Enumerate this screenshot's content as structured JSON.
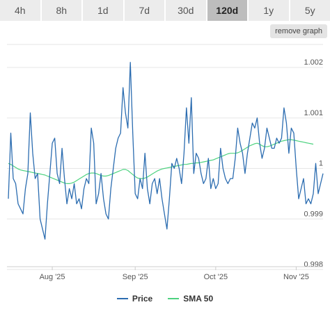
{
  "range_buttons": [
    "4h",
    "8h",
    "1d",
    "7d",
    "30d",
    "120d",
    "1y",
    "5y"
  ],
  "active_range": "120d",
  "remove_graph_label": "remove graph",
  "chart_data": {
    "type": "line",
    "x_axis": {
      "ticks": [
        "Aug '25",
        "Sep '25",
        "Oct '25",
        "Nov '25"
      ],
      "tick_index": [
        18,
        52,
        85,
        118
      ]
    },
    "y_axis": {
      "range": [
        0.998,
        1.0024
      ],
      "ticks": [
        0.998,
        0.999,
        1,
        1.001,
        1.002
      ],
      "tick_labels": [
        "0.998",
        "0.999",
        "1",
        "1.001",
        "1.002"
      ],
      "grid": true
    },
    "series": [
      {
        "name": "Price",
        "color": "#2b6cb0",
        "values": [
          0.9994,
          1.0007,
          0.9998,
          0.9997,
          0.9993,
          0.9992,
          0.9991,
          0.9996,
          0.9999,
          1.0011,
          1.0003,
          0.9998,
          0.9999,
          0.999,
          0.9988,
          0.9986,
          0.9993,
          0.9999,
          1.0005,
          1.0006,
          0.9999,
          0.9997,
          1.0004,
          0.9998,
          0.9993,
          0.9996,
          0.9994,
          0.9997,
          0.9993,
          0.9994,
          0.9992,
          0.9996,
          0.9998,
          0.9997,
          1.0008,
          1.0005,
          0.9993,
          0.9995,
          0.9999,
          0.9994,
          0.9991,
          0.999,
          0.9996,
          1.0,
          1.0004,
          1.0006,
          1.0007,
          1.0016,
          1.0011,
          1.0008,
          1.0021,
          1.0007,
          0.9995,
          0.9994,
          0.9998,
          0.9996,
          1.0003,
          0.9996,
          0.9993,
          0.9997,
          0.9998,
          0.9995,
          0.9998,
          0.9994,
          0.9991,
          0.9988,
          0.9994,
          1.0001,
          1.0,
          1.0002,
          1.0,
          0.9997,
          1.0003,
          1.0012,
          1.0005,
          1.0014,
          0.9999,
          1.0003,
          1.0002,
          0.9999,
          0.9997,
          0.9998,
          1.0002,
          0.9996,
          0.9998,
          0.9996,
          0.9997,
          1.0004,
          1.0,
          0.9998,
          0.9997,
          0.9998,
          0.9998,
          1.0002,
          1.0008,
          1.0005,
          1.0003,
          0.9999,
          1.0003,
          1.0006,
          1.0009,
          1.0008,
          1.001,
          1.0005,
          1.0002,
          1.0004,
          1.0008,
          1.0006,
          1.0004,
          1.0004,
          1.0006,
          1.0005,
          1.0006,
          1.0012,
          1.0009,
          1.0003,
          1.0008,
          1.0007,
          1.0,
          0.9994,
          0.9996,
          0.9998,
          0.9993,
          0.9994,
          0.9993,
          0.9995,
          1.0001,
          0.9995,
          0.9997,
          0.9999
        ]
      },
      {
        "name": "SMA 50",
        "color": "#4cd27f",
        "values": [
          1.0001,
          1.00008,
          1.00005,
          1.00002,
          0.99999,
          0.99997,
          0.99996,
          0.99995,
          0.99994,
          0.99993,
          0.99992,
          0.99991,
          0.9999,
          0.99989,
          0.99988,
          0.99987,
          0.99985,
          0.99983,
          0.99981,
          0.99979,
          0.99977,
          0.99975,
          0.99973,
          0.99971,
          0.9997,
          0.9997,
          0.99971,
          0.99973,
          0.99976,
          0.99979,
          0.99982,
          0.99985,
          0.99988,
          0.9999,
          0.99991,
          0.99991,
          0.9999,
          0.99988,
          0.99986,
          0.99985,
          0.99985,
          0.99986,
          0.99988,
          0.9999,
          0.99992,
          0.99994,
          0.99996,
          0.99998,
          0.99998,
          0.99996,
          0.99992,
          0.99988,
          0.99984,
          0.99981,
          0.9998,
          0.9998,
          0.99981,
          0.99983,
          0.99986,
          0.99989,
          0.99992,
          0.99995,
          0.99997,
          0.99999,
          1.0,
          1.00001,
          1.00002,
          1.00003,
          1.00004,
          1.00005,
          1.00006,
          1.00007,
          1.00008,
          1.00008,
          1.00009,
          1.0001,
          1.0001,
          1.00011,
          1.00011,
          1.00012,
          1.00013,
          1.00014,
          1.00015,
          1.00016,
          1.00017,
          1.00019,
          1.00021,
          1.00023,
          1.00025,
          1.00027,
          1.00029,
          1.0003,
          1.0003,
          1.0003,
          1.00031,
          1.00033,
          1.00036,
          1.00039,
          1.00042,
          1.00045,
          1.00047,
          1.00049,
          1.0005,
          1.00048,
          1.00045,
          1.00043,
          1.00043,
          1.00044,
          1.00046,
          1.00048,
          1.0005,
          1.00052,
          1.00054,
          1.00055,
          1.00056,
          1.00057,
          1.00057,
          1.00056,
          1.00055,
          1.00054,
          1.00053,
          1.00052,
          1.00051,
          1.0005,
          1.00049,
          1.00048
        ]
      }
    ],
    "legend": {
      "position": "bottom",
      "entries": [
        "Price",
        "SMA 50"
      ]
    }
  }
}
